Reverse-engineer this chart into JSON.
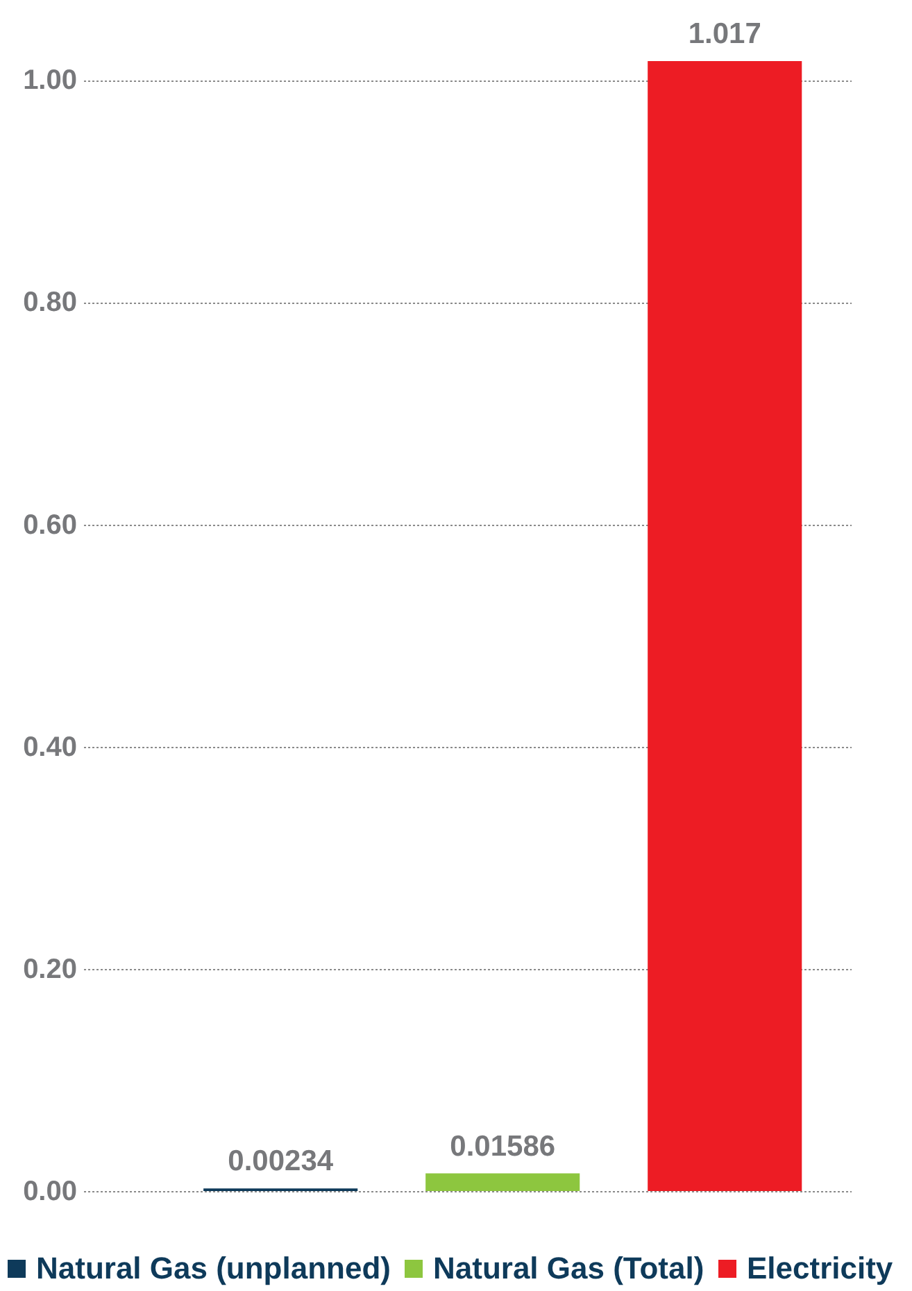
{
  "chart_data": {
    "type": "bar",
    "categories": [
      null,
      null,
      null
    ],
    "series": [
      {
        "name": "Natural Gas (unplanned)",
        "color": "#0e3a5a",
        "values": [
          0.00234,
          null,
          null
        ]
      },
      {
        "name": "Natural Gas (Total)",
        "color": "#8dc63f",
        "values": [
          null,
          0.01586,
          null
        ]
      },
      {
        "name": "Electricity",
        "color": "#ed1c24",
        "values": [
          null,
          null,
          1.017
        ]
      }
    ],
    "ylim": [
      0,
      1.017
    ],
    "yticks": [
      {
        "value": 0,
        "label": "0.00"
      },
      {
        "value": 0.2,
        "label": "0.20"
      },
      {
        "value": 0.4,
        "label": "0.40"
      },
      {
        "value": 0.6,
        "label": "0.60"
      },
      {
        "value": 0.8,
        "label": "0.80"
      },
      {
        "value": 1,
        "label": "1.00"
      }
    ],
    "grid": "y",
    "legend": "bottom",
    "data_labels": true,
    "tick_labels": "y"
  }
}
